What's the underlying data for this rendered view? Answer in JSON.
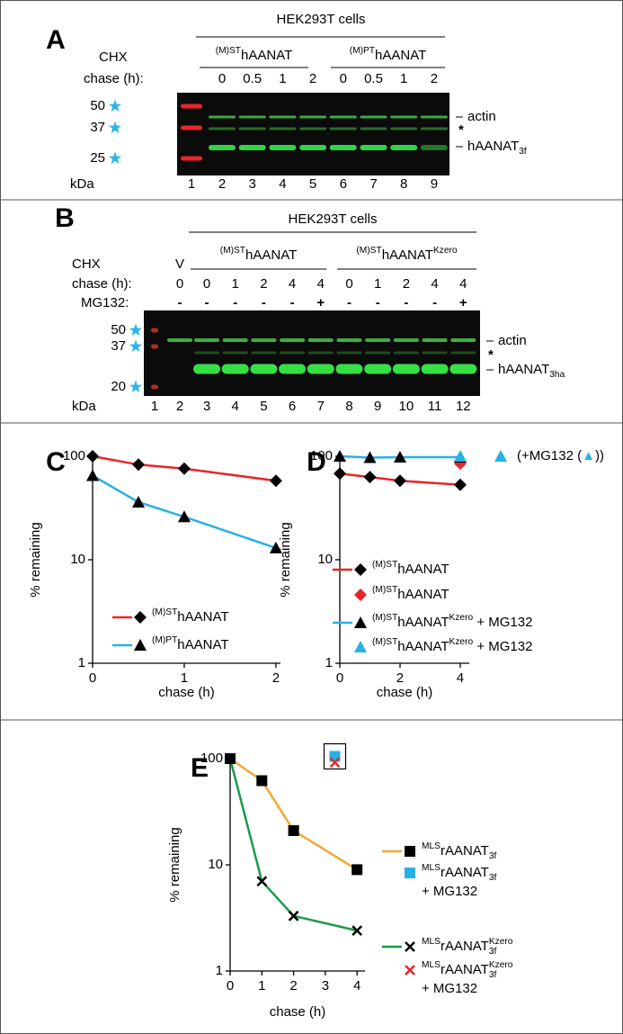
{
  "figure": {
    "A": {
      "letter": "A",
      "header": "HEK293T cells",
      "groups": [
        [
          {
            "t": "(M)ST",
            "s": "sup"
          },
          {
            "t": "hAANAT"
          }
        ],
        [
          {
            "t": "(M)PT",
            "s": "sup"
          },
          {
            "t": "hAANAT"
          }
        ]
      ],
      "row_labels": [
        "CHX",
        "chase (h):"
      ],
      "chase": [
        "0",
        "0.5",
        "1",
        "2",
        "0",
        "0.5",
        "1",
        "2"
      ],
      "markers": [
        "50",
        "37",
        "25"
      ],
      "unit": "kDa",
      "lanes": [
        "1",
        "2",
        "3",
        "4",
        "5",
        "6",
        "7",
        "8",
        "9"
      ],
      "bands": [
        [
          {
            "t": "actin"
          }
        ],
        [
          {
            "t": "*"
          }
        ],
        [
          {
            "t": "hAANAT"
          },
          {
            "t": "3f",
            "s": "sub"
          }
        ]
      ]
    },
    "B": {
      "letter": "B",
      "header": "HEK293T cells",
      "groups": [
        [
          {
            "t": "(M)ST",
            "s": "sup"
          },
          {
            "t": "hAANAT"
          }
        ],
        [
          {
            "t": "(M)ST",
            "s": "sup"
          },
          {
            "t": "hAANAT"
          },
          {
            "t": "Kzero",
            "s": "sup"
          }
        ]
      ],
      "row_labels": [
        "CHX",
        "chase (h):",
        "MG132:"
      ],
      "vector": "V",
      "chase": [
        "0",
        "0",
        "1",
        "2",
        "4",
        "4",
        "0",
        "1",
        "2",
        "4",
        "4"
      ],
      "mg132": [
        "-",
        "-",
        "-",
        "-",
        "-",
        "+",
        "-",
        "-",
        "-",
        "-",
        "+"
      ],
      "markers": [
        "50",
        "37",
        "20"
      ],
      "unit": "kDa",
      "lanes": [
        "1",
        "2",
        "3",
        "4",
        "5",
        "6",
        "7",
        "8",
        "9",
        "10",
        "11",
        "12"
      ],
      "bands": [
        [
          {
            "t": "actin"
          }
        ],
        [
          {
            "t": "*"
          }
        ],
        [
          {
            "t": "hAANAT"
          },
          {
            "t": "3ha",
            "s": "sub"
          }
        ]
      ]
    }
  },
  "chart_data": [
    {
      "type": "line",
      "label": "C",
      "ylabel": "% remaining",
      "xlabel": "chase (h)",
      "log_y": true,
      "xlim": [
        0,
        2.05
      ],
      "xticks": [
        0,
        1,
        2
      ],
      "ylim": [
        1,
        100
      ],
      "yticks": [
        1,
        10,
        100
      ],
      "series": [
        {
          "name": [
            {
              "t": "(M)ST",
              "s": "sup"
            },
            {
              "t": "hAANAT"
            }
          ],
          "color": "#e8262a",
          "marker": "diamond",
          "marker_color": "#000000",
          "x": [
            0,
            0.5,
            1,
            2
          ],
          "values": [
            100,
            83,
            76,
            58
          ]
        },
        {
          "name": [
            {
              "t": "(M)PT",
              "s": "sup"
            },
            {
              "t": "hAANAT"
            }
          ],
          "color": "#27b1e6",
          "marker": "triangle",
          "marker_color": "#000000",
          "x": [
            0,
            0.5,
            1,
            2
          ],
          "values": [
            65,
            36,
            26,
            13
          ]
        }
      ]
    },
    {
      "type": "line",
      "label": "D",
      "ylabel": "% remaining",
      "xlabel": "chase (h)",
      "log_y": true,
      "xlim": [
        0,
        4.3
      ],
      "xticks": [
        0,
        2,
        4
      ],
      "ylim": [
        1,
        100
      ],
      "yticks": [
        1,
        10,
        100
      ],
      "annotation": [
        {
          "t": "(+MG132 ("
        },
        {
          "t": "▲",
          "s": "blue"
        },
        {
          "t": "))"
        }
      ],
      "series": [
        {
          "name": [
            {
              "t": "(M)ST",
              "s": "sup"
            },
            {
              "t": "hAANAT"
            }
          ],
          "color": "#e8262a",
          "marker": "diamond",
          "marker_color": "#000000",
          "x": [
            0,
            1,
            2,
            4
          ],
          "values": [
            68,
            63,
            58,
            53
          ]
        },
        {
          "name": [
            {
              "t": "(M)ST",
              "s": "sup"
            },
            {
              "t": "hAANAT"
            }
          ],
          "color": null,
          "marker": "diamond",
          "marker_color": "#e8262a",
          "x": [
            4
          ],
          "values": [
            85
          ]
        },
        {
          "name": [
            {
              "t": "(M)ST",
              "s": "sup"
            },
            {
              "t": "hAANAT"
            },
            {
              "t": "Kzero",
              "s": "sup"
            },
            {
              "t": " + MG132"
            }
          ],
          "color": "#27b1e6",
          "marker": "triangle",
          "marker_color": "#000000",
          "x": [
            0,
            1,
            2,
            4
          ],
          "values": [
            100,
            97,
            98,
            98
          ]
        },
        {
          "name": [
            {
              "t": "(M)ST",
              "s": "sup"
            },
            {
              "t": "hAANAT"
            },
            {
              "t": "Kzero",
              "s": "sup"
            },
            {
              "t": " + MG132"
            }
          ],
          "color": null,
          "marker": "triangle",
          "marker_color": "#27b1e6",
          "x": [
            4
          ],
          "values": [
            100
          ]
        }
      ]
    },
    {
      "type": "line",
      "label": "E",
      "ylabel": "% remaining",
      "xlabel": "chase (h)",
      "log_y": true,
      "xlim": [
        0,
        4.25
      ],
      "xticks": [
        0,
        1,
        2,
        3,
        4
      ],
      "ylim": [
        1,
        100
      ],
      "yticks": [
        1,
        10,
        100
      ],
      "series": [
        {
          "name": [
            {
              "t": "MLS",
              "s": "sup"
            },
            {
              "t": "rAANAT"
            },
            {
              "t": "3f",
              "s": "sub"
            }
          ],
          "color": "#f5a733",
          "marker": "square",
          "marker_color": "#000000",
          "x": [
            0,
            1,
            2,
            4
          ],
          "values": [
            100,
            62,
            21,
            9
          ]
        },
        {
          "name": [
            {
              "t": "MLS",
              "s": "sup"
            },
            {
              "t": "rAANAT"
            },
            {
              "t": "3f",
              "s": "sub"
            },
            {
              "t": "+ MG132",
              "s": "line"
            }
          ],
          "color": null,
          "marker": "square",
          "marker_color": "#27b1e6",
          "x": [
            3.3
          ],
          "values": [
            105
          ]
        },
        {
          "name": [
            {
              "t": "MLS",
              "s": "sup"
            },
            {
              "t": "rAANAT"
            },
            {
              "t": "Kzero",
              "s": "sup"
            },
            {
              "t": "3f",
              "s": "sub"
            }
          ],
          "color": "#1a9a4a",
          "marker": "x",
          "marker_color": "#000000",
          "x": [
            0,
            1,
            2,
            4
          ],
          "values": [
            100,
            7,
            3.3,
            2.4
          ]
        },
        {
          "name": [
            {
              "t": "MLS",
              "s": "sup"
            },
            {
              "t": "rAANAT"
            },
            {
              "t": "Kzero",
              "s": "sup"
            },
            {
              "t": "3f",
              "s": "sub"
            },
            {
              "t": "+ MG132",
              "s": "line"
            }
          ],
          "color": null,
          "marker": "x",
          "marker_color": "#e8262a",
          "x": [
            3.3
          ],
          "values": [
            92
          ]
        }
      ]
    }
  ]
}
